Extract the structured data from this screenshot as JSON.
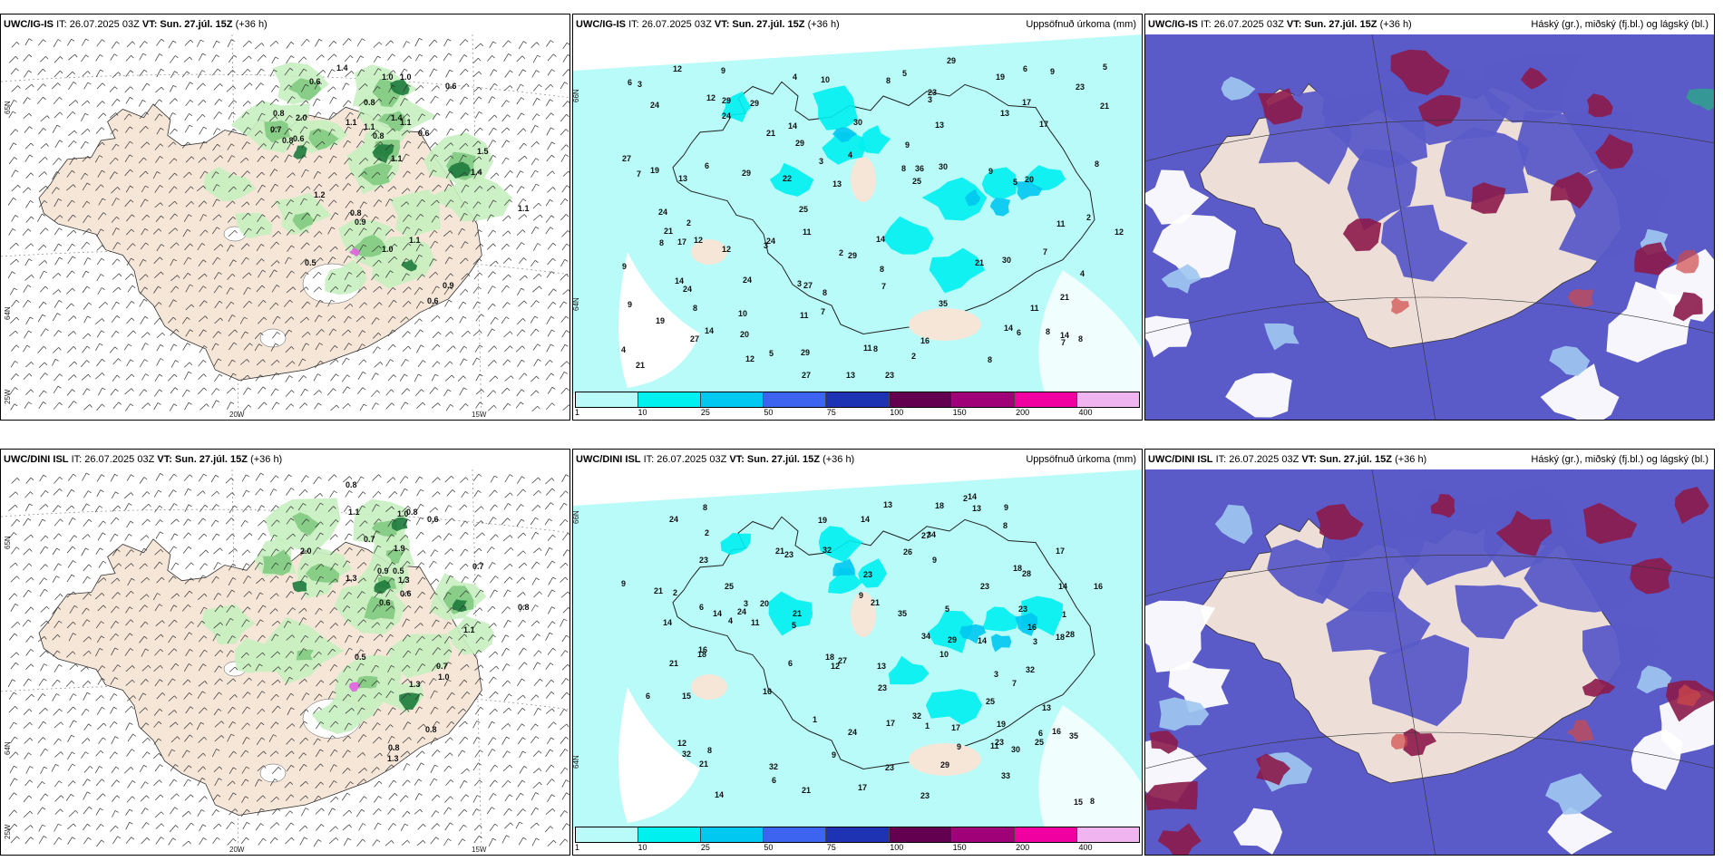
{
  "panels": [
    {
      "model": "UWC/IG-IS",
      "it_label": "IT: 26.07.2025 03Z",
      "vt_label": "VT: Sun. 27.júl. 15Z",
      "lead": "(+36 h)",
      "right_title": "",
      "type": "wind",
      "values": [
        "1.4",
        "0.6",
        "1.0",
        "1.0",
        "0.6",
        "0.8",
        "0.8",
        "2.0",
        "0.7",
        "0.8",
        "0.6",
        "1.1",
        "1.1",
        "1.4",
        "1.1",
        "0.8",
        "0.6",
        "1.1",
        "1.5",
        "1.4",
        "1.2",
        "0.8",
        "0.9",
        "1.1",
        "1.0",
        "0.5",
        "0.9",
        "0.6",
        "1.1"
      ]
    },
    {
      "model": "UWC/IG-IS",
      "it_label": "IT: 26.07.2025 03Z",
      "vt_label": "VT: Sun. 27.júl. 15Z",
      "lead": "(+36 h)",
      "right_title": "Uppsöfnuð úrkoma (mm)",
      "type": "precip",
      "values": [
        "8",
        "6",
        "11",
        "12",
        "16",
        "8",
        "5",
        "7",
        "13",
        "9",
        "8",
        "7",
        "11",
        "3",
        "14",
        "19",
        "24",
        "23",
        "21",
        "27",
        "12",
        "10",
        "17",
        "13",
        "21",
        "25",
        "14",
        "36",
        "35",
        "30",
        "25",
        "27",
        "29",
        "22",
        "21",
        "24",
        "20",
        "17",
        "12",
        "10",
        "13",
        "9",
        "6",
        "29",
        "14",
        "8",
        "4",
        "2",
        "3",
        "2"
      ]
    },
    {
      "model": "UWC/IG-IS",
      "it_label": "IT: 26.07.2025 03Z",
      "vt_label": "VT: Sun. 27.júl. 15Z",
      "lead": "(+36 h)",
      "right_title": "Háský (gr.), miðský (fj.bl.) og lágský (bl.)",
      "type": "cloud",
      "values": []
    },
    {
      "model": "UWC/DINI ISL",
      "it_label": "IT: 26.07.2025 03Z",
      "vt_label": "VT: Sun. 27.júl. 15Z",
      "lead": "(+36 h)",
      "right_title": "",
      "type": "wind",
      "values": [
        "0.8",
        "1.1",
        "1.0",
        "0.8",
        "0.6",
        "0.7",
        "2.0",
        "1.9",
        "0.9",
        "0.5",
        "1.3",
        "1.3",
        "0.6",
        "0.6",
        "0.7",
        "0.8",
        "1.1",
        "0.5",
        "1.3",
        "1.0",
        "0.7",
        "0.8",
        "0.8",
        "1.3"
      ]
    },
    {
      "model": "UWC/DINI ISL",
      "it_label": "IT: 26.07.2025 03Z",
      "vt_label": "VT: Sun. 27.júl. 15Z",
      "lead": "(+36 h)",
      "right_title": "Uppsöfnuð úrkoma (mm)",
      "type": "precip",
      "values": [
        "18",
        "9",
        "7",
        "16",
        "14",
        "13",
        "23",
        "21",
        "24",
        "19",
        "29",
        "11",
        "26",
        "21",
        "15",
        "17",
        "10",
        "34",
        "23",
        "30",
        "27",
        "35",
        "32",
        "20",
        "18",
        "24",
        "28",
        "33",
        "13",
        "16",
        "25",
        "17",
        "23",
        "14",
        "12",
        "6",
        "5",
        "3",
        "2",
        "1",
        "8",
        "9",
        "4"
      ]
    },
    {
      "model": "UWC/DINI ISL",
      "it_label": "IT: 26.07.2025 03Z",
      "vt_label": "VT: Sun. 27.júl. 15Z",
      "lead": "(+36 h)",
      "right_title": "Háský (gr.), miðský (fj.bl.) og lágský (bl.)",
      "type": "cloud",
      "values": []
    }
  ],
  "legend": {
    "colors": [
      "#b8fbf8",
      "#00f0f0",
      "#00c8f0",
      "#3c64f0",
      "#1e32b4",
      "#640050",
      "#a00078",
      "#f000a0",
      "#f0b4f0"
    ],
    "labels": [
      "1",
      "10",
      "25",
      "50",
      "75",
      "100",
      "150",
      "200",
      "400"
    ]
  },
  "grid_labels": {
    "lat": [
      "65N",
      "64N",
      "25W"
    ],
    "lon": [
      "20W",
      "15W"
    ],
    "lat_right": [
      "66N",
      "64N"
    ]
  },
  "colors": {
    "land": "#f5e6d8",
    "green_light": "#c8f0c0",
    "green_mid": "#7cc87c",
    "green_dark": "#1e7a3c",
    "precip_bg": "#b8fbf8",
    "cloud_high": "#8b1a4a",
    "cloud_mid": "#5a5ac8",
    "cloud_low": "#a0c8f0",
    "cloud_bg": "#ffffff"
  }
}
